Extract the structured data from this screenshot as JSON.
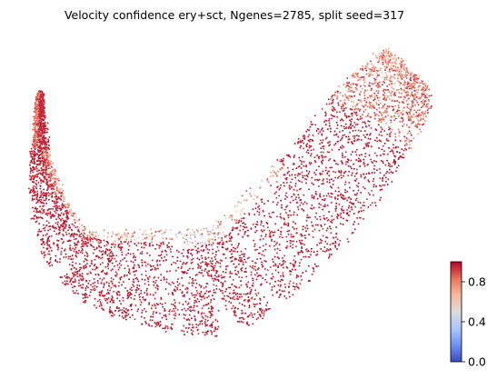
{
  "chart_data": {
    "type": "scatter",
    "title": "Velocity confidence ery+sct, Ngenes=2785, split seed=317",
    "xlabel": "",
    "ylabel": "",
    "axes_visible": false,
    "grid": false,
    "legend": "none",
    "point_color_value": "velocity confidence",
    "dominant_value_range": [
      0.9,
      1.0
    ],
    "low_value_region": "inner rim of the upper arc",
    "high_value_region": "body of the U-shaped manifold",
    "colormap": "coolwarm",
    "colorbar": {
      "placement": "right-bottom",
      "vmin": 0.0,
      "vmax": 1.0,
      "ticks": [
        0.0,
        0.4,
        0.8
      ],
      "tick_labels": [
        "0.0",
        "0.4",
        "0.8"
      ],
      "stops": [
        "#3b4cc0",
        "#6f92f3",
        "#aac7fd",
        "#dddcdc",
        "#f7b89c",
        "#e7745b",
        "#b40426"
      ]
    }
  }
}
